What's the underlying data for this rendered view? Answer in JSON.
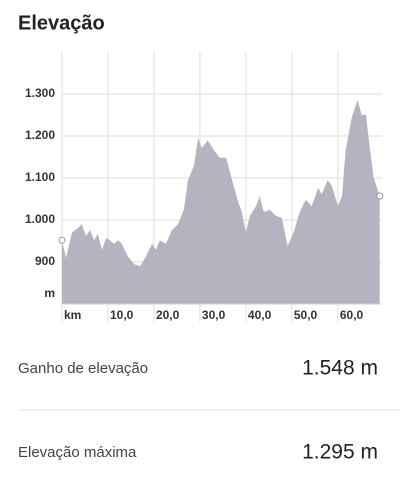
{
  "header": {
    "title": "Elevação"
  },
  "chart_data": {
    "type": "area",
    "x": [
      0,
      0.9,
      2.2,
      3.5,
      4.3,
      5.2,
      6.1,
      7.0,
      7.8,
      8.7,
      9.6,
      10.4,
      11.3,
      12.2,
      13.0,
      14.3,
      15.7,
      17.0,
      18.3,
      19.6,
      20.4,
      21.3,
      22.6,
      23.9,
      25.2,
      26.5,
      27.4,
      28.7,
      29.6,
      30.4,
      31.7,
      33.0,
      34.3,
      35.7,
      37.0,
      38.3,
      39.1,
      40.0,
      40.9,
      42.2,
      43.0,
      43.9,
      45.2,
      46.5,
      47.8,
      49.1,
      50.4,
      51.7,
      53.0,
      54.3,
      55.7,
      56.5,
      57.8,
      58.7,
      60.0,
      60.9,
      61.7,
      63.0,
      64.3,
      65.2,
      66.1,
      67.0,
      67.8,
      69.1
    ],
    "values": [
      952,
      910,
      971,
      981,
      990,
      962,
      976,
      952,
      967,
      929,
      957,
      952,
      943,
      952,
      943,
      914,
      895,
      890,
      914,
      943,
      929,
      952,
      943,
      976,
      990,
      1024,
      1095,
      1129,
      1195,
      1171,
      1190,
      1167,
      1148,
      1148,
      1095,
      1043,
      1019,
      971,
      1010,
      1033,
      1057,
      1019,
      1024,
      1010,
      1005,
      938,
      971,
      1019,
      1048,
      1033,
      1076,
      1062,
      1095,
      1081,
      1033,
      1057,
      1167,
      1243,
      1286,
      1248,
      1252,
      1167,
      1100,
      1057
    ],
    "color": "#b4b3bf",
    "xlabel": "km",
    "ylabel": "m",
    "xlim": [
      0,
      69.6
    ],
    "ylim": [
      800,
      1400
    ],
    "xticks": [
      {
        "value": 10,
        "label": "10,0"
      },
      {
        "value": 20,
        "label": "20,0"
      },
      {
        "value": 30,
        "label": "30,0"
      },
      {
        "value": 40,
        "label": "40,0"
      },
      {
        "value": 50,
        "label": "50,0"
      },
      {
        "value": 60,
        "label": "60,0"
      }
    ],
    "yticks": [
      900,
      {
        "value": 1000,
        "label": "1.000"
      },
      {
        "value": 1100,
        "label": "1.100"
      },
      {
        "value": 1200,
        "label": "1.200"
      },
      {
        "value": 1300,
        "label": "1.300"
      }
    ],
    "grid": true
  },
  "stats": [
    {
      "label": "Ganho de elevação",
      "value": "1.548 m"
    },
    {
      "label": "Elevação máxima",
      "value": "1.295 m"
    }
  ]
}
